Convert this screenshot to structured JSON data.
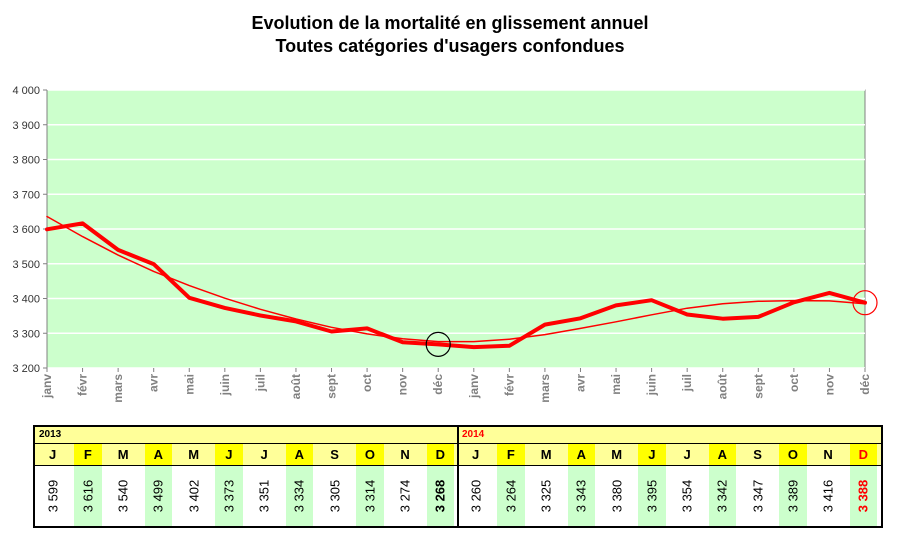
{
  "title": [
    "Evolution de la mortalité en glissement annuel",
    "Toutes catégories d'usagers confondues"
  ],
  "chart_data": {
    "type": "line",
    "x": [
      "janv",
      "févr",
      "mars",
      "avr",
      "mai",
      "juin",
      "juil",
      "août",
      "sept",
      "oct",
      "nov",
      "déc",
      "janv",
      "févr",
      "mars",
      "avr",
      "mai",
      "juin",
      "juil",
      "août",
      "sept",
      "oct",
      "nov",
      "déc"
    ],
    "series": [
      {
        "values": [
          3599,
          3616,
          3540,
          3499,
          3402,
          3373,
          3351,
          3334,
          3305,
          3314,
          3274,
          3268,
          3260,
          3264,
          3325,
          3343,
          3380,
          3395,
          3354,
          3342,
          3347,
          3389,
          3416,
          3388
        ],
        "color": "#ff0000"
      },
      {
        "values": [
          3636,
          3578,
          3525,
          3478,
          3437,
          3401,
          3369,
          3341,
          3317,
          3298,
          3284,
          3276,
          3276,
          3283,
          3296,
          3314,
          3333,
          3353,
          3372,
          3385,
          3392,
          3394,
          3393,
          3385
        ],
        "color": "#ff0000"
      }
    ],
    "ylim": [
      3200,
      4000
    ],
    "yticks": [
      "3 200",
      "3 300",
      "3 400",
      "3 500",
      "3 600",
      "3 700",
      "3 800",
      "3 900",
      "4 000"
    ],
    "grid": true,
    "plot_background": "#ccffcc",
    "highlight_points": [
      11,
      23
    ]
  },
  "table": {
    "years": [
      "2013",
      "2014"
    ],
    "months": [
      "J",
      "F",
      "M",
      "A",
      "M",
      "J",
      "J",
      "A",
      "S",
      "O",
      "N",
      "D",
      "J",
      "F",
      "M",
      "A",
      "M",
      "J",
      "J",
      "A",
      "S",
      "O",
      "N",
      "D"
    ],
    "values": [
      "3 599",
      "3 616",
      "3 540",
      "3 499",
      "3 402",
      "3 373",
      "3 351",
      "3 334",
      "3 305",
      "3 314",
      "3 274",
      "3 268",
      "3 260",
      "3 264",
      "3 325",
      "3 343",
      "3 380",
      "3 395",
      "3 354",
      "3 342",
      "3 347",
      "3 389",
      "3 416",
      "3 388"
    ],
    "colors": {
      "header": "#ffff99",
      "month_highlight": "#ffff00",
      "value_highlight": "#ccffcc",
      "accent": "#ff0000"
    }
  }
}
